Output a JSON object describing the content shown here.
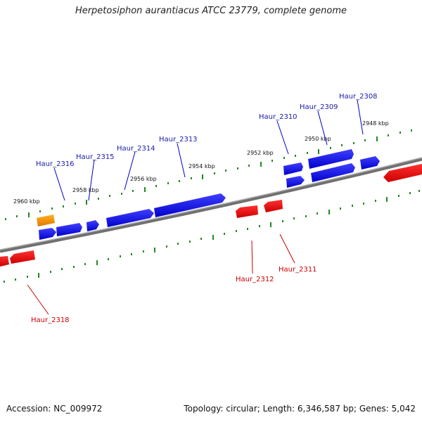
{
  "title": "Herpetosiphon aurantiacus ATCC 23779, complete genome",
  "footer": {
    "accession": "Accession: NC_009972",
    "topology": "Topology: circular; Length: 6,346,587 bp; Genes: 5,042"
  },
  "colors": {
    "forward": "#0000ee",
    "reverse": "#ee0000",
    "other": "#f09000",
    "backbone": "#808080",
    "ticks": "#228822"
  },
  "kbp_labels": [
    "2948 kbp",
    "2950 kbp",
    "2952 kbp",
    "2954 kbp",
    "2956 kbp",
    "2958 kbp",
    "2960 kbp"
  ],
  "forward_genes": [
    "Haur_2308",
    "Haur_2309",
    "Haur_2310",
    "Haur_2313",
    "Haur_2314",
    "Haur_2315",
    "Haur_2316"
  ],
  "reverse_genes": [
    "Haur_2311",
    "Haur_2312",
    "Haur_2318"
  ]
}
